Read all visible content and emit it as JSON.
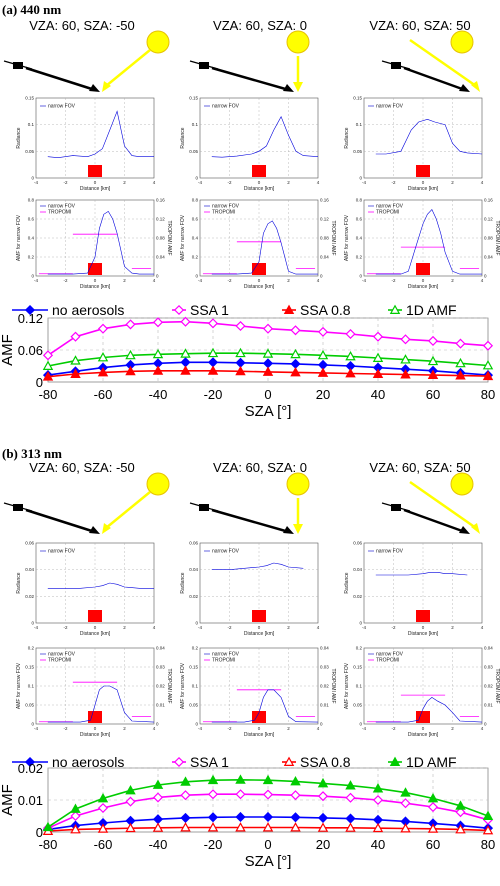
{
  "chart_data": [
    {
      "panel_label": "(a) 440 nm",
      "type": "line",
      "geometry_titles": [
        "VZA: 60, SZA: -50",
        "VZA: 60, SZA: 0",
        "VZA: 60, SZA: 50"
      ],
      "small_plots": {
        "radiance": {
          "legend": "narrow FOV",
          "ylabel": "Radiance",
          "xlabel": "Distance [km]",
          "xticks": [
            "-4",
            "-2",
            "0",
            "2",
            "4"
          ],
          "yticks": [
            "0",
            "0.05",
            "0.1",
            "0.15"
          ],
          "ylim": [
            0,
            0.15
          ],
          "series": [
            {
              "x": [
                -3.2,
                -2.5,
                -1.5,
                -0.5,
                0,
                0.5,
                1,
                1.5,
                2,
                2.5,
                3,
                4
              ],
              "y": [
                0.04,
                0.038,
                0.042,
                0.04,
                0.045,
                0.055,
                0.09,
                0.125,
                0.06,
                0.042,
                0.04,
                0.04
              ]
            },
            {
              "x": [
                -3.2,
                -2.5,
                -1.5,
                -0.5,
                0,
                0.5,
                1,
                1.5,
                2,
                2.5,
                3,
                4
              ],
              "y": [
                0.04,
                0.039,
                0.041,
                0.045,
                0.05,
                0.06,
                0.09,
                0.115,
                0.08,
                0.05,
                0.042,
                0.04
              ]
            },
            {
              "x": [
                -3.2,
                -2.5,
                -1.5,
                -0.8,
                -0.3,
                0.3,
                0.8,
                1.5,
                2,
                2.5,
                3,
                4
              ],
              "y": [
                0.045,
                0.045,
                0.05,
                0.09,
                0.105,
                0.11,
                0.105,
                0.1,
                0.065,
                0.05,
                0.047,
                0.045
              ]
            }
          ]
        },
        "amf": {
          "legend": [
            "narrow FOV",
            "TROPOMI"
          ],
          "ylabel": "AMF for narrow FOV",
          "y2label": "TROPOMI AMF",
          "xlabel": "Distance [km]",
          "xticks": [
            "-4",
            "-2",
            "0",
            "2",
            "4"
          ],
          "yticks": [
            "0",
            "0.2",
            "0.4",
            "0.6",
            "0.8"
          ],
          "y2ticks": [
            "0",
            "0.04",
            "0.08",
            "0.12",
            "0.16"
          ],
          "ylim": [
            0,
            0.8
          ],
          "series": [
            {
              "x": [
                -3.2,
                -1.5,
                -0.5,
                0,
                0.3,
                0.6,
                0.9,
                1.2,
                1.5,
                2,
                2.5,
                3,
                4
              ],
              "y": [
                0.02,
                0.02,
                0.03,
                0.2,
                0.5,
                0.65,
                0.68,
                0.6,
                0.45,
                0.1,
                0.03,
                0.02,
                0.02
              ]
            },
            {
              "x": [
                -3.2,
                -1.5,
                -0.5,
                0,
                0.3,
                0.6,
                0.9,
                1.2,
                1.5,
                2,
                2.5,
                3,
                4
              ],
              "y": [
                0.02,
                0.02,
                0.03,
                0.15,
                0.45,
                0.55,
                0.58,
                0.5,
                0.35,
                0.05,
                0.02,
                0.02,
                0.02
              ]
            },
            {
              "x": [
                -3.2,
                -1.5,
                -1,
                -0.5,
                0,
                0.3,
                0.6,
                0.9,
                1.2,
                1.5,
                2,
                2.5,
                3,
                4
              ],
              "y": [
                0.02,
                0.02,
                0.05,
                0.3,
                0.55,
                0.65,
                0.7,
                0.6,
                0.45,
                0.25,
                0.05,
                0.02,
                0.02,
                0.02
              ]
            }
          ]
        }
      },
      "amf_plot": {
        "ylabel": "AMF",
        "xlabel": "SZA [°]",
        "xticks": [
          "-80",
          "-60",
          "-40",
          "-20",
          "0",
          "20",
          "40",
          "60",
          "80"
        ],
        "yticks": [
          "0",
          "0.06",
          "0.12"
        ],
        "xlim": [
          -80,
          80
        ],
        "ylim": [
          0,
          0.12
        ],
        "x": [
          -80,
          -70,
          -60,
          -50,
          -40,
          -30,
          -20,
          -10,
          0,
          10,
          20,
          30,
          40,
          50,
          60,
          70,
          80
        ],
        "series": [
          {
            "name": "no aerosols",
            "color": "#0000ff",
            "marker": "diamond-filled",
            "values": [
              0.013,
              0.02,
              0.027,
              0.032,
              0.035,
              0.037,
              0.037,
              0.036,
              0.035,
              0.034,
              0.032,
              0.03,
              0.027,
              0.024,
              0.021,
              0.017,
              0.013
            ]
          },
          {
            "name": "SSA 1",
            "color": "#ff00ff",
            "marker": "diamond-open",
            "values": [
              0.05,
              0.085,
              0.1,
              0.108,
              0.112,
              0.113,
              0.11,
              0.105,
              0.1,
              0.097,
              0.094,
              0.09,
              0.085,
              0.08,
              0.077,
              0.072,
              0.068
            ]
          },
          {
            "name": "SSA 0.8",
            "color": "#ff0000",
            "marker": "triangle-filled",
            "values": [
              0.01,
              0.015,
              0.018,
              0.02,
              0.021,
              0.021,
              0.021,
              0.02,
              0.019,
              0.018,
              0.017,
              0.016,
              0.015,
              0.014,
              0.013,
              0.012,
              0.011
            ]
          },
          {
            "name": "1D AMF",
            "color": "#00cc00",
            "marker": "triangle-open",
            "values": [
              0.03,
              0.04,
              0.046,
              0.05,
              0.052,
              0.053,
              0.054,
              0.054,
              0.053,
              0.052,
              0.05,
              0.048,
              0.045,
              0.042,
              0.039,
              0.035,
              0.031
            ]
          }
        ]
      }
    },
    {
      "panel_label": "(b) 313 nm",
      "type": "line",
      "geometry_titles": [
        "VZA: 60, SZA: -50",
        "VZA: 60, SZA: 0",
        "VZA: 60, SZA: 50"
      ],
      "small_plots": {
        "radiance": {
          "legend": "narrow FOV",
          "ylabel": "Radiance",
          "xlabel": "Distance [km]",
          "xticks": [
            "-4",
            "-2",
            "0",
            "2",
            "4"
          ],
          "yticks": [
            "0",
            "0.02",
            "0.04",
            "0.06"
          ],
          "ylim": [
            0,
            0.06
          ],
          "series": [
            {
              "x": [
                -3.2,
                -2,
                -1,
                0,
                0.5,
                1,
                1.5,
                2,
                3,
                4
              ],
              "y": [
                0.026,
                0.026,
                0.026,
                0.027,
                0.028,
                0.03,
                0.029,
                0.027,
                0.026,
                0.026
              ]
            },
            {
              "x": [
                -3.2,
                -2,
                -1,
                0,
                0.5,
                1,
                1.5,
                2,
                3
              ],
              "y": [
                0.04,
                0.04,
                0.041,
                0.042,
                0.043,
                0.045,
                0.044,
                0.042,
                0.041
              ]
            },
            {
              "x": [
                -3.2,
                -2,
                -1,
                0,
                0.5,
                1,
                1.5,
                2,
                3
              ],
              "y": [
                0.036,
                0.036,
                0.036,
                0.037,
                0.038,
                0.038,
                0.037,
                0.037,
                0.036
              ]
            }
          ]
        },
        "amf": {
          "legend": [
            "narrow FOV",
            "TROPOMI"
          ],
          "ylabel": "AMF for narrow FOV",
          "y2label": "TROPOMI AMF",
          "xlabel": "Distance [km]",
          "xticks": [
            "-4",
            "-2",
            "0",
            "2",
            "4"
          ],
          "yticks": [
            "0",
            "0.05",
            "0.1",
            "0.15",
            "0.2"
          ],
          "y2ticks": [
            "0",
            "0.01",
            "0.02",
            "0.03",
            "0.04"
          ],
          "ylim": [
            0,
            0.2
          ],
          "series": [
            {
              "x": [
                -3.2,
                -1,
                -0.3,
                0,
                0.3,
                0.6,
                1,
                1.5,
                2,
                2.5,
                4
              ],
              "y": [
                0.005,
                0.005,
                0.01,
                0.05,
                0.09,
                0.1,
                0.1,
                0.09,
                0.03,
                0.008,
                0.005
              ]
            },
            {
              "x": [
                -3.2,
                -1,
                -0.3,
                0,
                0.3,
                0.6,
                1,
                1.5,
                2,
                2.5,
                4
              ],
              "y": [
                0.005,
                0.005,
                0.01,
                0.03,
                0.07,
                0.09,
                0.09,
                0.07,
                0.02,
                0.006,
                0.005
              ]
            },
            {
              "x": [
                -3.2,
                -1,
                -0.3,
                0,
                0.3,
                0.6,
                1,
                1.5,
                2,
                2.5,
                4
              ],
              "y": [
                0.005,
                0.005,
                0.01,
                0.04,
                0.06,
                0.07,
                0.06,
                0.05,
                0.03,
                0.008,
                0.005
              ]
            }
          ]
        }
      },
      "amf_plot": {
        "ylabel": "AMF",
        "xlabel": "SZA [°]",
        "xticks": [
          "-80",
          "-60",
          "-40",
          "-20",
          "0",
          "20",
          "40",
          "60",
          "80"
        ],
        "yticks": [
          "0",
          "0.01",
          "0.02"
        ],
        "xlim": [
          -80,
          80
        ],
        "ylim": [
          0,
          0.02
        ],
        "x": [
          -80,
          -70,
          -60,
          -50,
          -40,
          -30,
          -20,
          -10,
          0,
          10,
          20,
          30,
          40,
          50,
          60,
          70,
          80
        ],
        "series": [
          {
            "name": "no aerosols",
            "color": "#0000ff",
            "marker": "diamond-filled",
            "values": [
              0.0008,
              0.002,
              0.0028,
              0.0035,
              0.004,
              0.0044,
              0.0046,
              0.0047,
              0.0047,
              0.0046,
              0.0044,
              0.0042,
              0.0038,
              0.0033,
              0.0027,
              0.002,
              0.0012
            ]
          },
          {
            "name": "SSA 1",
            "color": "#ff00ff",
            "marker": "diamond-open",
            "values": [
              0.0012,
              0.005,
              0.0075,
              0.0095,
              0.0108,
              0.0115,
              0.0118,
              0.0118,
              0.0117,
              0.0115,
              0.0112,
              0.0107,
              0.01,
              0.009,
              0.0078,
              0.0062,
              0.0038
            ]
          },
          {
            "name": "SSA 0.8",
            "color": "#ff0000",
            "marker": "triangle-open",
            "values": [
              0.0003,
              0.0008,
              0.001,
              0.0012,
              0.0013,
              0.0014,
              0.0014,
              0.0014,
              0.0014,
              0.0014,
              0.0013,
              0.0013,
              0.0012,
              0.0011,
              0.001,
              0.0008,
              0.0005
            ]
          },
          {
            "name": "1D AMF",
            "color": "#00cc00",
            "marker": "triangle-filled",
            "values": [
              0.0015,
              0.0072,
              0.0105,
              0.013,
              0.0147,
              0.0157,
              0.0162,
              0.0163,
              0.0162,
              0.0158,
              0.0152,
              0.0145,
              0.0136,
              0.0123,
              0.0105,
              0.0082,
              0.005
            ]
          }
        ]
      }
    }
  ]
}
